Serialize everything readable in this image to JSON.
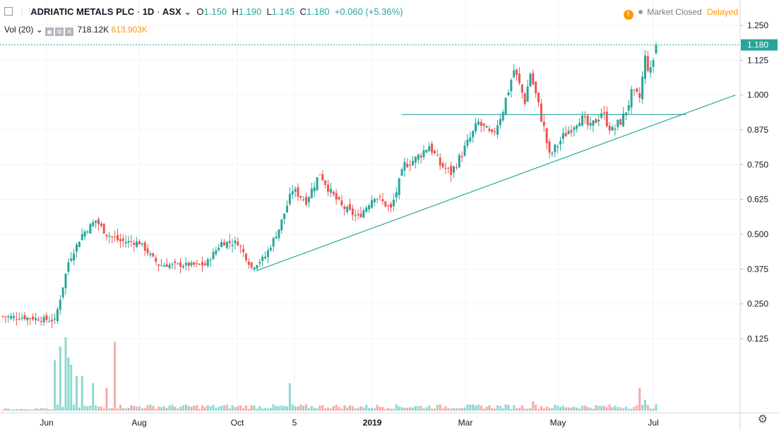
{
  "header": {
    "symbol": "ADRIATIC METALS PLC",
    "interval": "1D",
    "exchange": "ASX",
    "open_label": "O",
    "open": "1.150",
    "high_label": "H",
    "high": "1.190",
    "low_label": "L",
    "low": "1.145",
    "close_label": "C",
    "close": "1.180",
    "change": "+0.060 (+5.36%)"
  },
  "volume_legend": {
    "label": "Vol (20)",
    "value1": "718.12K",
    "value2": "613.903K"
  },
  "status": {
    "market": "Market Closed",
    "delay": "Delayed"
  },
  "colors": {
    "up": "#26a69a",
    "down": "#ef5350",
    "vol_up": "#8fd8cf",
    "vol_down": "#f7a9a7",
    "line": "#26a69a",
    "price_tag": "#26a69a"
  },
  "icons": {
    "settings": "gear-icon",
    "warning": "warning-icon",
    "collapse": "collapse-icon"
  },
  "chart_data": {
    "type": "candlestick",
    "title": "ADRIATIC METALS PLC · 1D · ASX",
    "x_labels": [
      "Jun",
      "Aug",
      "Oct",
      "5",
      "2019",
      "Mar",
      "May",
      "Jul"
    ],
    "y_ticks": [
      "1.250",
      "1.125",
      "1.000",
      "0.875",
      "0.750",
      "0.625",
      "0.500",
      "0.375",
      "0.250",
      "0.125"
    ],
    "ylim": [
      0.07,
      1.29
    ],
    "last_price": 1.18,
    "last_price_label": "1.180",
    "grid": true,
    "anchors": [
      {
        "i": 0,
        "p": 0.205
      },
      {
        "i": 10,
        "p": 0.2
      },
      {
        "i": 19,
        "p": 0.19
      },
      {
        "i": 21,
        "p": 0.27
      },
      {
        "i": 24,
        "p": 0.4
      },
      {
        "i": 29,
        "p": 0.5
      },
      {
        "i": 34,
        "p": 0.55
      },
      {
        "i": 38,
        "p": 0.5
      },
      {
        "i": 43,
        "p": 0.475
      },
      {
        "i": 50,
        "p": 0.47
      },
      {
        "i": 57,
        "p": 0.39
      },
      {
        "i": 67,
        "p": 0.39
      },
      {
        "i": 74,
        "p": 0.39
      },
      {
        "i": 80,
        "p": 0.47
      },
      {
        "i": 86,
        "p": 0.47
      },
      {
        "i": 91,
        "p": 0.38
      },
      {
        "i": 96,
        "p": 0.42
      },
      {
        "i": 101,
        "p": 0.52
      },
      {
        "i": 106,
        "p": 0.66
      },
      {
        "i": 111,
        "p": 0.62
      },
      {
        "i": 116,
        "p": 0.72
      },
      {
        "i": 120,
        "p": 0.65
      },
      {
        "i": 124,
        "p": 0.6
      },
      {
        "i": 130,
        "p": 0.56
      },
      {
        "i": 136,
        "p": 0.64
      },
      {
        "i": 142,
        "p": 0.59
      },
      {
        "i": 147,
        "p": 0.75
      },
      {
        "i": 151,
        "p": 0.77
      },
      {
        "i": 156,
        "p": 0.82
      },
      {
        "i": 160,
        "p": 0.75
      },
      {
        "i": 164,
        "p": 0.72
      },
      {
        "i": 168,
        "p": 0.79
      },
      {
        "i": 174,
        "p": 0.9
      },
      {
        "i": 179,
        "p": 0.85
      },
      {
        "i": 183,
        "p": 0.95
      },
      {
        "i": 187,
        "p": 1.09
      },
      {
        "i": 191,
        "p": 0.98
      },
      {
        "i": 193,
        "p": 1.08
      },
      {
        "i": 198,
        "p": 0.88
      },
      {
        "i": 200,
        "p": 0.78
      },
      {
        "i": 205,
        "p": 0.85
      },
      {
        "i": 211,
        "p": 0.92
      },
      {
        "i": 215,
        "p": 0.88
      },
      {
        "i": 219,
        "p": 0.94
      },
      {
        "i": 223,
        "p": 0.87
      },
      {
        "i": 227,
        "p": 0.92
      },
      {
        "i": 230,
        "p": 1.0
      },
      {
        "i": 233,
        "p": 0.99
      },
      {
        "i": 235,
        "p": 1.13
      },
      {
        "i": 237,
        "p": 1.08
      },
      {
        "i": 239,
        "p": 1.18
      }
    ],
    "volume_spikes": [
      {
        "i": 19,
        "v": 0.55
      },
      {
        "i": 21,
        "v": 0.7
      },
      {
        "i": 23,
        "v": 0.8
      },
      {
        "i": 24,
        "v": 0.58
      },
      {
        "i": 25,
        "v": 0.5
      },
      {
        "i": 27,
        "v": 0.38
      },
      {
        "i": 29,
        "v": 0.38
      },
      {
        "i": 33,
        "v": 0.3
      },
      {
        "i": 38,
        "v": 0.25
      },
      {
        "i": 41,
        "v": 0.75
      },
      {
        "i": 105,
        "v": 0.3
      },
      {
        "i": 194,
        "v": 0.1
      },
      {
        "i": 233,
        "v": 0.25
      },
      {
        "i": 235,
        "v": 0.12
      }
    ],
    "horizontal_line": {
      "price": 0.93,
      "from_i": 146,
      "to_i": 250
    },
    "trend_line": {
      "from": {
        "i": 93,
        "p": 0.37
      },
      "to": {
        "i": 268,
        "p": 1.0
      }
    }
  }
}
